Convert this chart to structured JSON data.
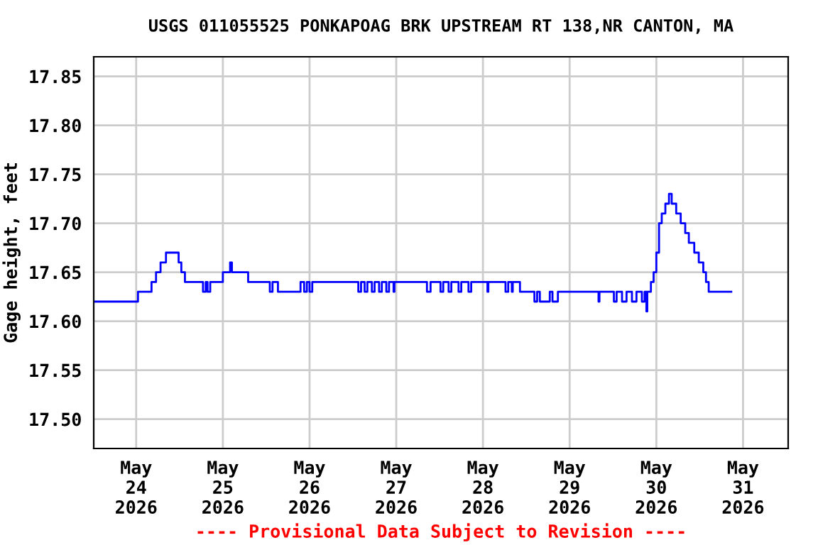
{
  "chart_data": {
    "type": "step",
    "title": "USGS 011055525 PONKAPOAG BRK UPSTREAM RT 138,NR CANTON, MA",
    "ylabel": "Gage height, feet",
    "annotations": [
      "---- Provisional Data Subject to Revision ----"
    ],
    "x": [
      "2026-05-23T12:15",
      "2026-05-24T00:30",
      "2026-05-24T04:15",
      "2026-05-24T05:30",
      "2026-05-24T06:45",
      "2026-05-24T08:15",
      "2026-05-24T11:45",
      "2026-05-24T12:30",
      "2026-05-24T13:30",
      "2026-05-24T18:30",
      "2026-05-24T19:15",
      "2026-05-24T19:45",
      "2026-05-24T20:30",
      "2026-05-25T00:00",
      "2026-05-25T02:00",
      "2026-05-25T02:30",
      "2026-05-25T07:00",
      "2026-05-25T13:00",
      "2026-05-25T13:45",
      "2026-05-25T15:15",
      "2026-05-25T21:30",
      "2026-05-25T22:30",
      "2026-05-25T23:15",
      "2026-05-26T00:00",
      "2026-05-26T00:45",
      "2026-05-26T13:30",
      "2026-05-26T14:15",
      "2026-05-26T15:15",
      "2026-05-26T16:00",
      "2026-05-26T17:15",
      "2026-05-26T18:00",
      "2026-05-26T19:15",
      "2026-05-26T20:00",
      "2026-05-26T21:15",
      "2026-05-26T22:00",
      "2026-05-26T23:15",
      "2026-05-26T23:30",
      "2026-05-27T08:30",
      "2026-05-27T09:30",
      "2026-05-27T12:15",
      "2026-05-27T13:00",
      "2026-05-27T14:30",
      "2026-05-27T15:15",
      "2026-05-27T17:15",
      "2026-05-27T18:00",
      "2026-05-27T20:00",
      "2026-05-27T20:45",
      "2026-05-28T01:15",
      "2026-05-28T01:30",
      "2026-05-28T06:15",
      "2026-05-28T07:00",
      "2026-05-28T08:00",
      "2026-05-28T08:15",
      "2026-05-28T10:15",
      "2026-05-28T14:15",
      "2026-05-28T15:00",
      "2026-05-28T15:45",
      "2026-05-28T18:30",
      "2026-05-28T19:15",
      "2026-05-28T20:45",
      "2026-05-29T08:00",
      "2026-05-29T08:15",
      "2026-05-29T12:15",
      "2026-05-29T13:00",
      "2026-05-29T14:30",
      "2026-05-29T15:45",
      "2026-05-29T17:15",
      "2026-05-29T18:30",
      "2026-05-29T20:00",
      "2026-05-29T20:45",
      "2026-05-29T21:15",
      "2026-05-29T21:30",
      "2026-05-29T22:30",
      "2026-05-29T23:15",
      "2026-05-30T00:00",
      "2026-05-30T00:45",
      "2026-05-30T01:30",
      "2026-05-30T02:30",
      "2026-05-30T03:30",
      "2026-05-30T04:15",
      "2026-05-30T05:30",
      "2026-05-30T06:45",
      "2026-05-30T08:00",
      "2026-05-30T09:00",
      "2026-05-30T10:30",
      "2026-05-30T11:45",
      "2026-05-30T13:00",
      "2026-05-30T13:45",
      "2026-05-30T14:30",
      "2026-05-30T20:45"
    ],
    "series": [
      {
        "color": "#0000ff",
        "values": [
          17.62,
          17.63,
          17.64,
          17.65,
          17.66,
          17.67,
          17.66,
          17.65,
          17.64,
          17.63,
          17.64,
          17.63,
          17.64,
          17.65,
          17.66,
          17.65,
          17.64,
          17.63,
          17.64,
          17.63,
          17.64,
          17.63,
          17.64,
          17.63,
          17.64,
          17.63,
          17.64,
          17.63,
          17.64,
          17.63,
          17.64,
          17.63,
          17.64,
          17.63,
          17.64,
          17.63,
          17.64,
          17.63,
          17.64,
          17.63,
          17.64,
          17.63,
          17.64,
          17.63,
          17.64,
          17.63,
          17.64,
          17.63,
          17.64,
          17.63,
          17.64,
          17.63,
          17.64,
          17.63,
          17.62,
          17.63,
          17.62,
          17.63,
          17.62,
          17.63,
          17.62,
          17.63,
          17.62,
          17.63,
          17.62,
          17.63,
          17.62,
          17.63,
          17.62,
          17.63,
          17.61,
          17.63,
          17.64,
          17.65,
          17.67,
          17.7,
          17.71,
          17.72,
          17.73,
          17.72,
          17.71,
          17.7,
          17.69,
          17.68,
          17.67,
          17.66,
          17.65,
          17.64,
          17.63,
          17.63
        ]
      }
    ],
    "xlim": [
      "2026-05-23T12:15",
      "2026-05-31T12:30"
    ],
    "xticks": [
      {
        "value": "2026-05-24",
        "label": "May\n24\n2026"
      },
      {
        "value": "2026-05-25",
        "label": "May\n25\n2026"
      },
      {
        "value": "2026-05-26",
        "label": "May\n26\n2026"
      },
      {
        "value": "2026-05-27",
        "label": "May\n27\n2026"
      },
      {
        "value": "2026-05-28",
        "label": "May\n28\n2026"
      },
      {
        "value": "2026-05-29",
        "label": "May\n29\n2026"
      },
      {
        "value": "2026-05-30",
        "label": "May\n30\n2026"
      },
      {
        "value": "2026-05-31",
        "label": "May\n31\n2026"
      }
    ],
    "ylim": [
      17.47,
      17.87
    ],
    "yticks": [
      {
        "value": 17.5,
        "label": "17.50"
      },
      {
        "value": 17.55,
        "label": "17.55"
      },
      {
        "value": 17.6,
        "label": "17.60"
      },
      {
        "value": 17.65,
        "label": "17.65"
      },
      {
        "value": 17.7,
        "label": "17.70"
      },
      {
        "value": 17.75,
        "label": "17.75"
      },
      {
        "value": 17.8,
        "label": "17.80"
      },
      {
        "value": 17.85,
        "label": "17.85"
      }
    ],
    "grid": true,
    "legend": false
  }
}
